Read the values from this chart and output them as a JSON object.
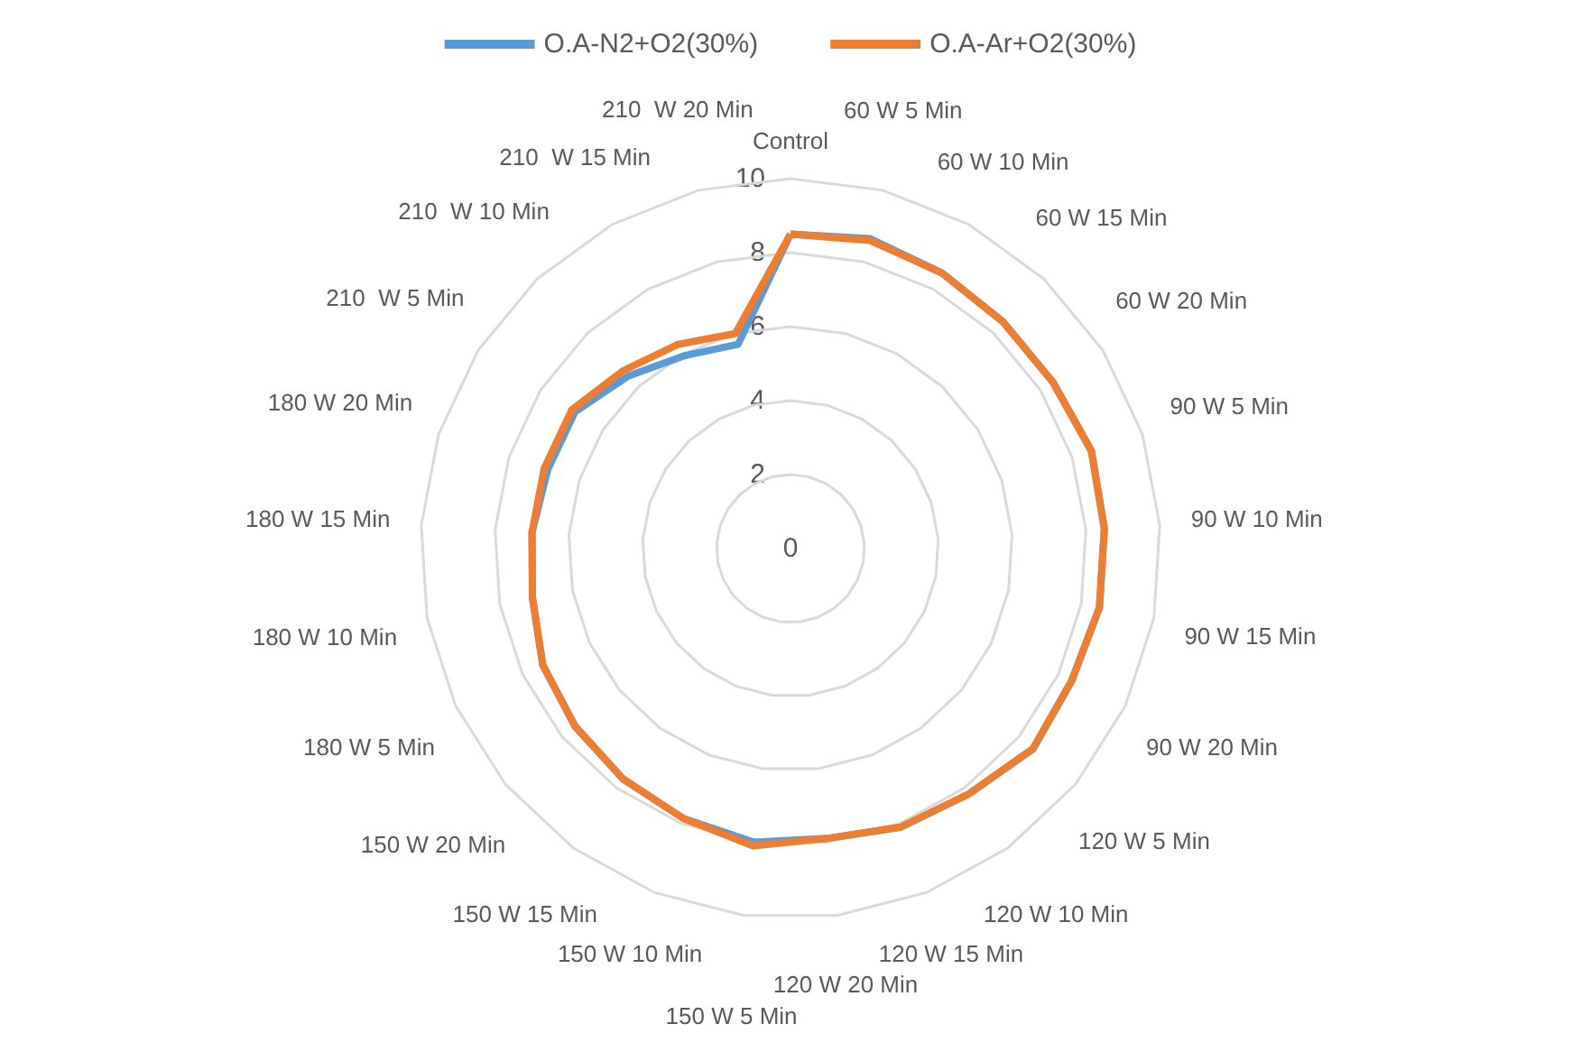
{
  "chart_data": {
    "type": "radar",
    "categories": [
      "Control",
      "60 W 5 Min",
      "60 W 10 Min",
      "60 W 15 Min",
      "60 W 20 Min",
      "90 W 5 Min",
      "90 W 10 Min",
      "90 W 15 Min",
      "90 W 20 Min",
      "120 W 5 Min",
      "120 W 10 Min",
      "120 W 15 Min",
      "120 W 20 Min",
      "150 W 5 Min",
      "150 W 10 Min",
      "150 W 15 Min",
      "150 W 20 Min",
      "180 W 5 Min",
      "180 W 10 Min",
      "180 W 15 Min",
      "180 W 20 Min",
      "210  W 5 Min",
      "210  W 10 Min",
      "210  W 15 Min",
      "210  W 20 Min"
    ],
    "series": [
      {
        "name": "O.A-N2+O2(30%)",
        "color": "#5b9bd5",
        "values": [
          8.5,
          8.65,
          8.5,
          8.4,
          8.4,
          8.55,
          8.5,
          8.5,
          8.4,
          8.5,
          8.2,
          8.1,
          7.9,
          8.0,
          7.85,
          7.7,
          7.55,
          7.4,
          7.1,
          7.0,
          6.9,
          6.9,
          6.4,
          5.95,
          5.7
        ]
      },
      {
        "name": "O.A-Ar+O2(30%)",
        "color": "#ed7d31",
        "values": [
          8.5,
          8.6,
          8.5,
          8.4,
          8.4,
          8.55,
          8.5,
          8.5,
          8.4,
          8.5,
          8.2,
          8.1,
          7.9,
          8.1,
          7.85,
          7.7,
          7.55,
          7.4,
          7.1,
          7.0,
          7.0,
          7.0,
          6.6,
          6.3,
          6.0
        ]
      }
    ],
    "ylim": [
      0,
      10
    ],
    "yticks": [
      0,
      2,
      4,
      6,
      8,
      10
    ],
    "legend": "top",
    "line_style": "solid",
    "marker": "none"
  }
}
